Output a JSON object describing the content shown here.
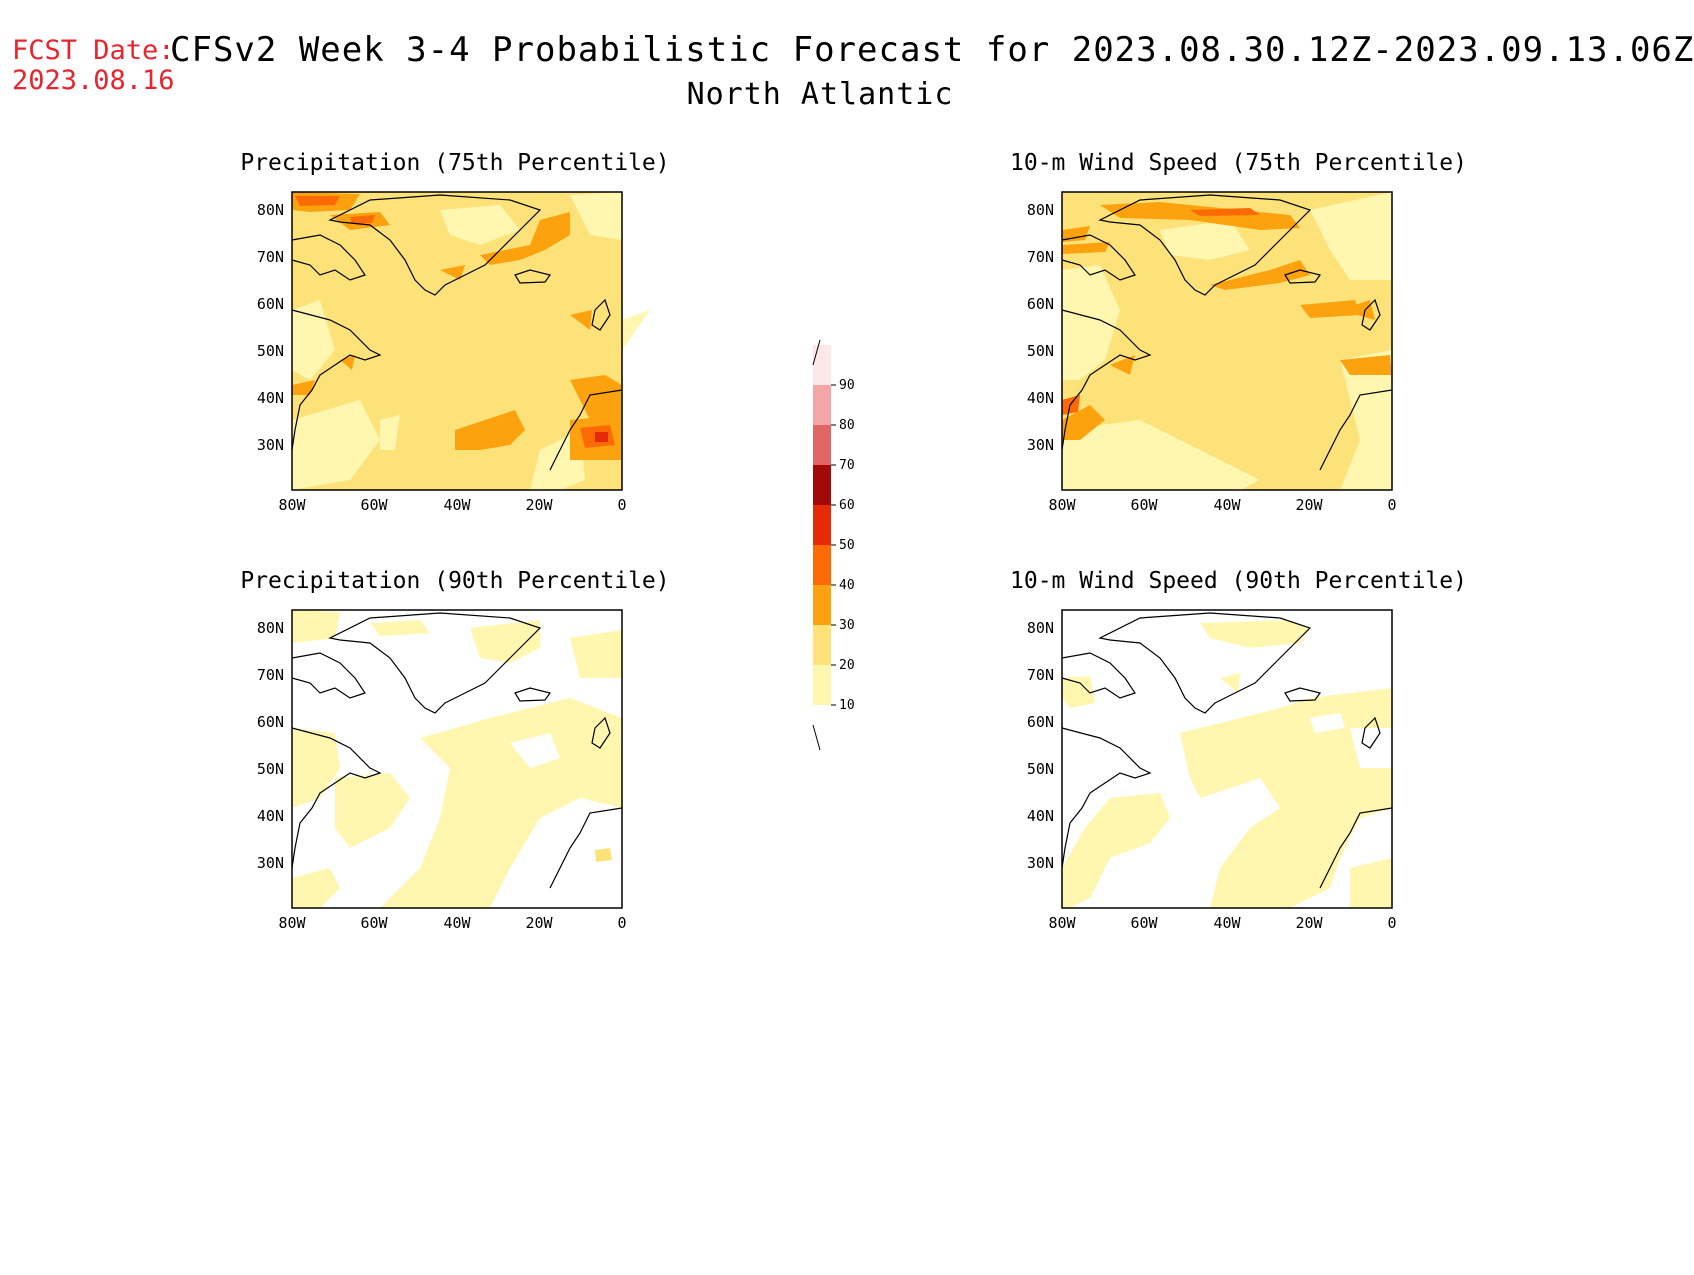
{
  "header": {
    "fcst_label": "FCST Date:",
    "fcst_date": "2023.08.16",
    "title": "CFSv2 Week 3-4 Probabilistic Forecast for 2023.08.30.12Z-2023.09.13.06Z",
    "region": "North Atlantic"
  },
  "panels": [
    {
      "title": "Precipitation (75th Percentile)"
    },
    {
      "title": "10-m Wind Speed (75th Percentile)"
    },
    {
      "title": "Precipitation (90th Percentile)"
    },
    {
      "title": "10-m Wind Speed (90th Percentile)"
    }
  ],
  "axes": {
    "lat_labels": [
      "80N",
      "70N",
      "60N",
      "50N",
      "40N",
      "30N"
    ],
    "lon_labels": [
      "80W",
      "60W",
      "40W",
      "20W",
      "0"
    ]
  },
  "legend": {
    "labels": [
      "10",
      "20",
      "30",
      "40",
      "50",
      "60",
      "70",
      "80",
      "90"
    ],
    "colors": [
      "#fff7b0",
      "#fde27a",
      "#fca20e",
      "#fc6a05",
      "#e62a08",
      "#a20a0a",
      "#e06565",
      "#f4a5a5",
      "#fde8e8"
    ]
  },
  "chart_data": [
    {
      "type": "heatmap",
      "title": "Precipitation (75th Percentile)",
      "dominant_category": "20-30",
      "max_category": "50-60"
    },
    {
      "type": "heatmap",
      "title": "10-m Wind Speed (75th Percentile)",
      "dominant_category": "20-30",
      "max_category": "40-50"
    },
    {
      "type": "heatmap",
      "title": "Precipitation (90th Percentile)",
      "dominant_category": "10-20",
      "max_category": "20-30"
    },
    {
      "type": "heatmap",
      "title": "10-m Wind Speed (90th Percentile)",
      "dominant_category": "10-20",
      "max_category": "10-20"
    }
  ]
}
